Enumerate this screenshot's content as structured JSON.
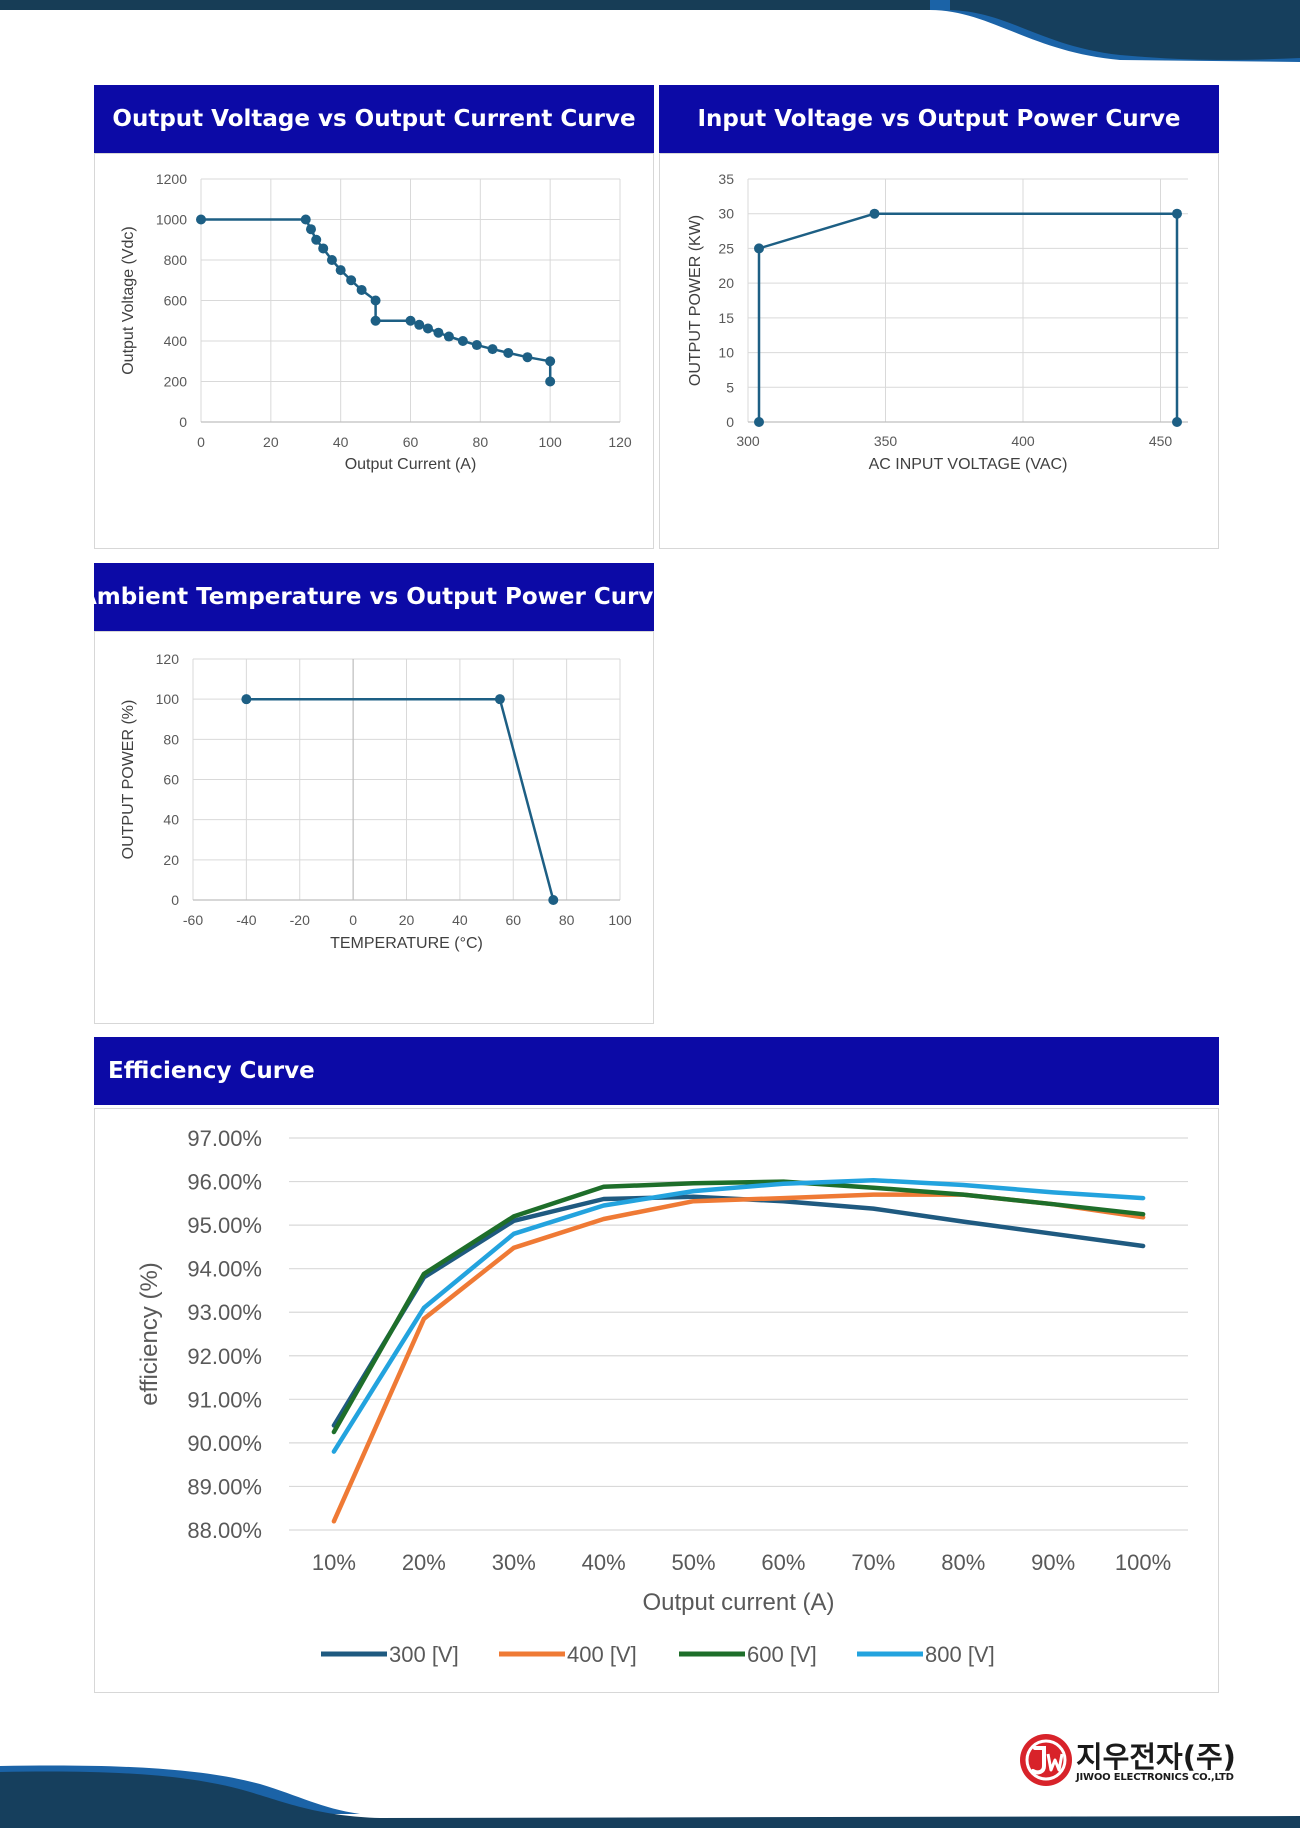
{
  "chart_data": [
    {
      "type": "line",
      "title": "Output Voltage vs Output Current Curve",
      "xlabel": "Output Current (A)",
      "ylabel": "Output Voltage (Vdc)",
      "xlim": [
        0,
        120
      ],
      "ylim": [
        0,
        1200
      ],
      "x_ticks": [
        "0",
        "20",
        "40",
        "60",
        "80",
        "100",
        "120"
      ],
      "y_ticks": [
        "0",
        "200",
        "400",
        "600",
        "800",
        "1000",
        "1200"
      ],
      "grid": true,
      "color": "#1d5f84",
      "markers": true,
      "points": [
        [
          0,
          1000
        ],
        [
          30,
          1000
        ],
        [
          31.5,
          952
        ],
        [
          33,
          900
        ],
        [
          35,
          857
        ],
        [
          37.5,
          800
        ],
        [
          40,
          750
        ],
        [
          43,
          700
        ],
        [
          46,
          652
        ],
        [
          50,
          600
        ],
        [
          50,
          500
        ],
        [
          60,
          500
        ],
        [
          62.5,
          480
        ],
        [
          65,
          462
        ],
        [
          68,
          441
        ],
        [
          71,
          422
        ],
        [
          75,
          400
        ],
        [
          79,
          380
        ],
        [
          83.5,
          360
        ],
        [
          88,
          341
        ],
        [
          93.5,
          320
        ],
        [
          100,
          300
        ],
        [
          100,
          200
        ]
      ]
    },
    {
      "type": "line",
      "title": "Input Voltage vs Output Power Curve",
      "xlabel": "AC INPUT VOLTAGE (VAC)",
      "ylabel": "OUTPUT POWER (KW)",
      "xlim": [
        300,
        460
      ],
      "ylim": [
        0,
        35
      ],
      "x_ticks": [
        {
          "v": 300,
          "t": "300"
        },
        {
          "v": 350,
          "t": "350"
        },
        {
          "v": 400,
          "t": "400"
        },
        {
          "v": 450,
          "t": "450"
        }
      ],
      "y_ticks": [
        "0",
        "5",
        "10",
        "15",
        "20",
        "25",
        "30",
        "35"
      ],
      "grid": true,
      "color": "#1d5f84",
      "markers": true,
      "points": [
        [
          304,
          0
        ],
        [
          304,
          25
        ],
        [
          346,
          30
        ],
        [
          456,
          30
        ],
        [
          456,
          0
        ]
      ]
    },
    {
      "type": "line",
      "title": "Ambient Temperature vs Output Power Curve",
      "xlabel": "TEMPERATURE (°C)",
      "ylabel": "OUTPUT POWER (%)",
      "xlim": [
        -60,
        100
      ],
      "ylim": [
        0,
        120
      ],
      "x_ticks": [
        "-60",
        "-40",
        "-20",
        "0",
        "20",
        "40",
        "60",
        "80",
        "100"
      ],
      "y_ticks": [
        "0",
        "20",
        "40",
        "60",
        "80",
        "100",
        "120"
      ],
      "grid": true,
      "color": "#1d5f84",
      "markers": true,
      "points": [
        [
          -40,
          100
        ],
        [
          55,
          100
        ],
        [
          75,
          0
        ]
      ]
    },
    {
      "type": "line",
      "title": "Efficiency Curve",
      "xlabel": "Output current (A)",
      "ylabel": "efficiency (%)",
      "ylim": [
        88,
        97
      ],
      "y_ticks": [
        "88.00%",
        "89.00%",
        "90.00%",
        "91.00%",
        "92.00%",
        "93.00%",
        "94.00%",
        "95.00%",
        "96.00%",
        "97.00%"
      ],
      "categories": [
        "10%",
        "20%",
        "30%",
        "40%",
        "50%",
        "60%",
        "70%",
        "80%",
        "90%",
        "100%"
      ],
      "grid": true,
      "legend": "bottom",
      "series": [
        {
          "name": "300 [V]",
          "color": "#1f5a80",
          "values": [
            90.4,
            93.8,
            95.1,
            95.6,
            95.65,
            95.55,
            95.38,
            95.08,
            94.8,
            94.52
          ]
        },
        {
          "name": "400 [V]",
          "color": "#ef7a35",
          "values": [
            88.2,
            92.85,
            94.48,
            95.14,
            95.55,
            95.62,
            95.7,
            95.7,
            95.48,
            95.18
          ]
        },
        {
          "name": "600 [V]",
          "color": "#1e6e2a",
          "values": [
            90.25,
            93.88,
            95.2,
            95.88,
            95.96,
            96.0,
            95.86,
            95.7,
            95.48,
            95.25
          ]
        },
        {
          "name": "800 [V]",
          "color": "#23a3de",
          "values": [
            89.8,
            93.1,
            94.8,
            95.45,
            95.78,
            95.95,
            96.03,
            95.92,
            95.75,
            95.62
          ]
        }
      ]
    }
  ],
  "brand": {
    "name_ko": "지우전자(주)",
    "name_en": "JIWOO ELECTRONICS CO.,LTD",
    "logo_color": "#d8232a"
  }
}
